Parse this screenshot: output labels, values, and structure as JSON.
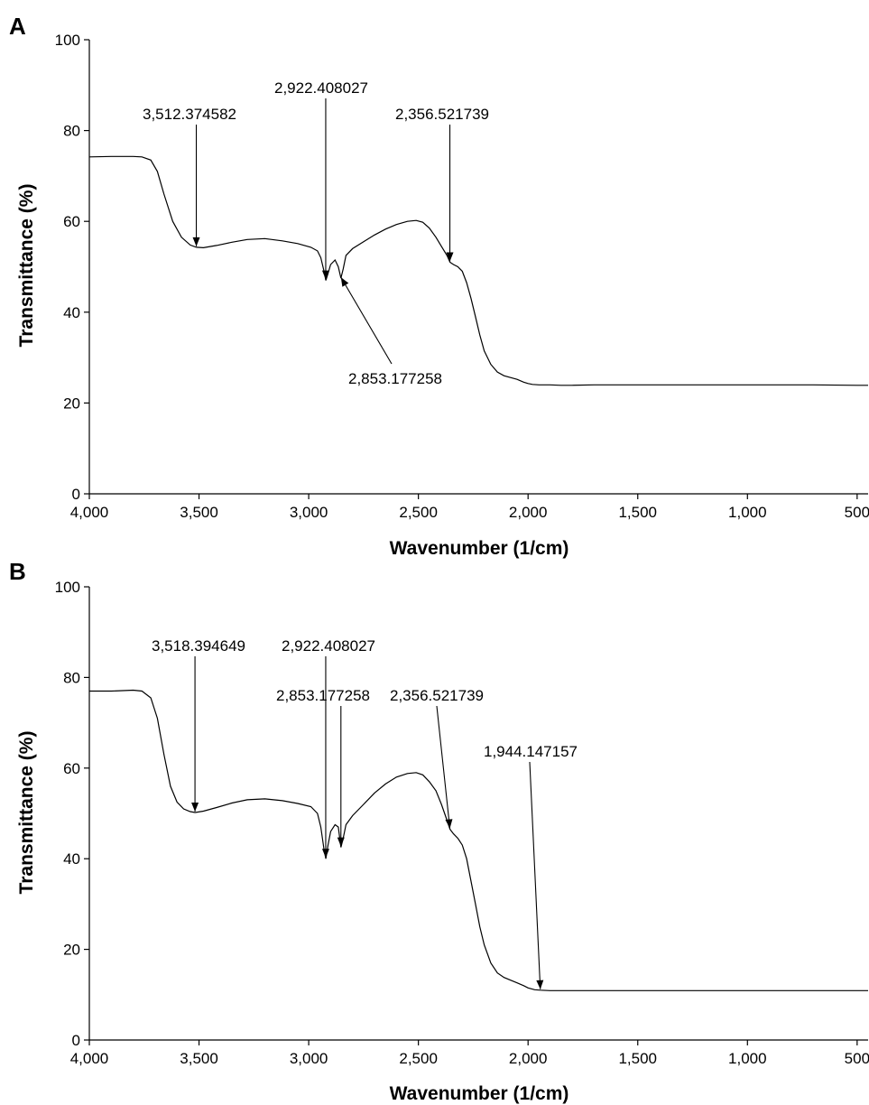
{
  "chart_data": [
    {
      "panel": "A",
      "type": "line",
      "xlabel": "Wavenumber (1/cm)",
      "ylabel": "Transmittance (%)",
      "xlim": [
        4000,
        450
      ],
      "ylim": [
        0,
        100
      ],
      "x_reversed": true,
      "x_ticks": [
        {
          "value": 4000,
          "label": "4,000"
        },
        {
          "value": 3500,
          "label": "3,500"
        },
        {
          "value": 3000,
          "label": "3,000"
        },
        {
          "value": 2500,
          "label": "2,500"
        },
        {
          "value": 2000,
          "label": "2,000"
        },
        {
          "value": 1500,
          "label": "1,500"
        },
        {
          "value": 1000,
          "label": "1,000"
        },
        {
          "value": 500,
          "label": "500"
        }
      ],
      "y_ticks": [
        {
          "value": 0,
          "label": "0"
        },
        {
          "value": 20,
          "label": "20"
        },
        {
          "value": 40,
          "label": "40"
        },
        {
          "value": 60,
          "label": "60"
        },
        {
          "value": 80,
          "label": "80"
        },
        {
          "value": 100,
          "label": "100"
        }
      ],
      "grid": false,
      "series": [
        {
          "x": [
            4000,
            3900,
            3800,
            3760,
            3720,
            3690,
            3660,
            3620,
            3580,
            3540,
            3512,
            3480,
            3420,
            3350,
            3280,
            3200,
            3120,
            3050,
            2990,
            2960,
            2945,
            2930,
            2922,
            2912,
            2900,
            2880,
            2865,
            2853,
            2843,
            2830,
            2800,
            2750,
            2700,
            2650,
            2600,
            2550,
            2510,
            2480,
            2450,
            2420,
            2395,
            2370,
            2356,
            2340,
            2320,
            2300,
            2280,
            2260,
            2240,
            2220,
            2200,
            2170,
            2140,
            2110,
            2080,
            2050,
            2020,
            2000,
            1980,
            1950,
            1900,
            1850,
            1800,
            1700,
            1500,
            1300,
            1100,
            900,
            700,
            500,
            450
          ],
          "y": [
            74.2,
            74.3,
            74.3,
            74.2,
            73.5,
            71,
            66,
            60,
            56.5,
            54.8,
            54.3,
            54.2,
            54.7,
            55.4,
            56.0,
            56.2,
            55.7,
            55.1,
            54.3,
            53.5,
            52.0,
            49.0,
            47.0,
            48.5,
            50.5,
            51.5,
            50.0,
            47.5,
            49.5,
            52.5,
            54.0,
            55.5,
            57.0,
            58.3,
            59.3,
            60.0,
            60.2,
            59.8,
            58.5,
            56.5,
            54.5,
            52.5,
            51.0,
            50.5,
            50.0,
            49.0,
            46.5,
            43.0,
            39.0,
            35.0,
            31.5,
            28.5,
            26.8,
            26.0,
            25.6,
            25.2,
            24.6,
            24.3,
            24.1,
            24.0,
            24.0,
            23.9,
            23.9,
            24.0,
            24.0,
            24.0,
            24.0,
            24.0,
            24.0,
            23.9,
            23.9
          ]
        }
      ],
      "annotations": [
        {
          "label": "3,512.374582",
          "x": 3512.374582,
          "y": 54.3
        },
        {
          "label": "2,922.408027",
          "x": 2922.408027,
          "y": 47.0
        },
        {
          "label": "2,356.521739",
          "x": 2356.521739,
          "y": 51.0
        },
        {
          "label": "2,853.177258",
          "x": 2853.177258,
          "y": 47.5
        }
      ]
    },
    {
      "panel": "B",
      "type": "line",
      "xlabel": "Wavenumber (1/cm)",
      "ylabel": "Transmittance (%)",
      "xlim": [
        4000,
        450
      ],
      "ylim": [
        0,
        100
      ],
      "x_reversed": true,
      "x_ticks": [
        {
          "value": 4000,
          "label": "4,000"
        },
        {
          "value": 3500,
          "label": "3,500"
        },
        {
          "value": 3000,
          "label": "3,000"
        },
        {
          "value": 2500,
          "label": "2,500"
        },
        {
          "value": 2000,
          "label": "2,000"
        },
        {
          "value": 1500,
          "label": "1,500"
        },
        {
          "value": 1000,
          "label": "1,000"
        },
        {
          "value": 500,
          "label": "500"
        }
      ],
      "y_ticks": [
        {
          "value": 0,
          "label": "0"
        },
        {
          "value": 20,
          "label": "20"
        },
        {
          "value": 40,
          "label": "40"
        },
        {
          "value": 60,
          "label": "60"
        },
        {
          "value": 80,
          "label": "80"
        },
        {
          "value": 100,
          "label": "100"
        }
      ],
      "grid": false,
      "series": [
        {
          "x": [
            4000,
            3900,
            3800,
            3760,
            3720,
            3690,
            3660,
            3630,
            3600,
            3570,
            3540,
            3518,
            3480,
            3420,
            3350,
            3280,
            3200,
            3120,
            3050,
            2990,
            2960,
            2945,
            2930,
            2922,
            2912,
            2900,
            2880,
            2865,
            2853,
            2843,
            2830,
            2800,
            2750,
            2700,
            2650,
            2600,
            2550,
            2510,
            2480,
            2450,
            2420,
            2395,
            2370,
            2356,
            2340,
            2320,
            2300,
            2280,
            2260,
            2240,
            2220,
            2200,
            2170,
            2140,
            2110,
            2080,
            2050,
            2020,
            2000,
            1970,
            1944,
            1900,
            1800,
            1600,
            1400,
            1200,
            1000,
            800,
            600,
            450
          ],
          "y": [
            77.0,
            77.0,
            77.2,
            77.0,
            75.5,
            71.0,
            63.0,
            56.0,
            52.5,
            51.0,
            50.4,
            50.2,
            50.5,
            51.3,
            52.3,
            53.0,
            53.2,
            52.8,
            52.2,
            51.5,
            50.0,
            47.0,
            42.0,
            40.0,
            43.0,
            46.0,
            47.5,
            47.0,
            42.5,
            44.5,
            47.5,
            49.5,
            52.0,
            54.5,
            56.5,
            58.0,
            58.8,
            59.0,
            58.5,
            57.0,
            55.0,
            52.0,
            48.5,
            46.5,
            45.5,
            44.5,
            43.0,
            40.0,
            35.0,
            30.0,
            25.0,
            21.0,
            17.0,
            14.8,
            13.8,
            13.2,
            12.6,
            12.0,
            11.5,
            11.1,
            11.0,
            10.9,
            10.9,
            10.9,
            10.9,
            10.9,
            10.9,
            10.9,
            10.9,
            10.9
          ]
        }
      ],
      "annotations": [
        {
          "label": "3,518.394649",
          "x": 3518.394649,
          "y": 50.2
        },
        {
          "label": "2,922.408027",
          "x": 2922.408027,
          "y": 40.0
        },
        {
          "label": "2,853.177258",
          "x": 2853.177258,
          "y": 42.5
        },
        {
          "label": "2,356.521739",
          "x": 2356.521739,
          "y": 46.5
        },
        {
          "label": "1,944.147157",
          "x": 1944.147157,
          "y": 11.0
        }
      ]
    }
  ]
}
